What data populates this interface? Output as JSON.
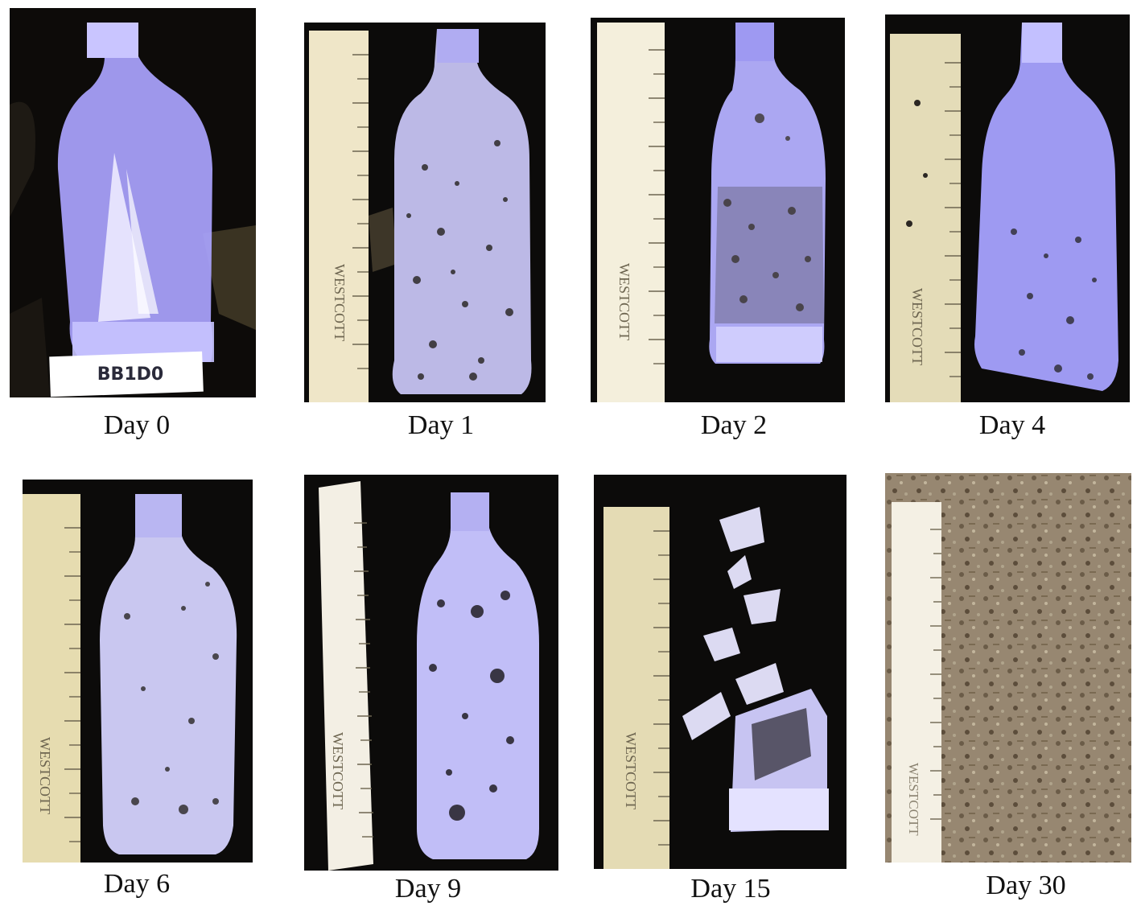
{
  "panels": [
    {
      "caption": "Day 0",
      "ruler_brand": "",
      "sample_label": "BB1D0"
    },
    {
      "caption": "Day 1",
      "ruler_brand": "WESTCOTT"
    },
    {
      "caption": "Day 2",
      "ruler_brand": "WESTCOTT"
    },
    {
      "caption": "Day 4",
      "ruler_brand": "WESTCOTT"
    },
    {
      "caption": "Day 6",
      "ruler_brand": "WESTCOTT"
    },
    {
      "caption": "Day 9",
      "ruler_brand": "WESTCOTT"
    },
    {
      "caption": "Day 15",
      "ruler_brand": "WESTCOTT"
    },
    {
      "caption": "Day 30",
      "ruler_brand": "WESTCOTT"
    }
  ],
  "colors": {
    "soil": "#0b0a09",
    "bottle": "#b9b4ff",
    "bottle_light": "#e4e2ff",
    "ruler": "#efe6c8",
    "compost": "#9b8a70"
  }
}
